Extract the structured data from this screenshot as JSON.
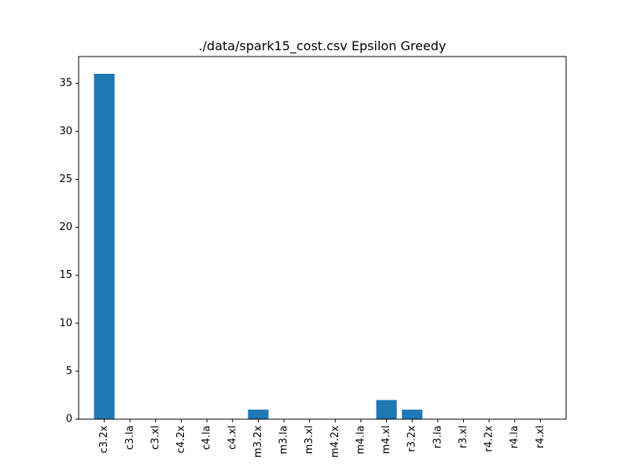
{
  "chart_data": {
    "type": "bar",
    "title": "./data/spark15_cost.csv Epsilon Greedy",
    "xlabel": "",
    "ylabel": "",
    "categories": [
      "c3.2x",
      "c3.la",
      "c3.xl",
      "c4.2x",
      "c4.la",
      "c4.xl",
      "m3.2x",
      "m3.la",
      "m3.xl",
      "m4.2x",
      "m4.la",
      "m4.xl",
      "r3.2x",
      "r3.la",
      "r3.xl",
      "r4.2x",
      "r4.la",
      "r4.xl"
    ],
    "values": [
      36,
      0,
      0,
      0,
      0,
      0,
      1,
      0,
      0,
      0,
      0,
      2,
      1,
      0,
      0,
      0,
      0,
      0
    ],
    "ylim": [
      0,
      37.8
    ],
    "yticks": [
      "0",
      "5",
      "10",
      "15",
      "20",
      "25",
      "30",
      "35"
    ],
    "bar_color": "#1f77b4",
    "grid": false
  }
}
